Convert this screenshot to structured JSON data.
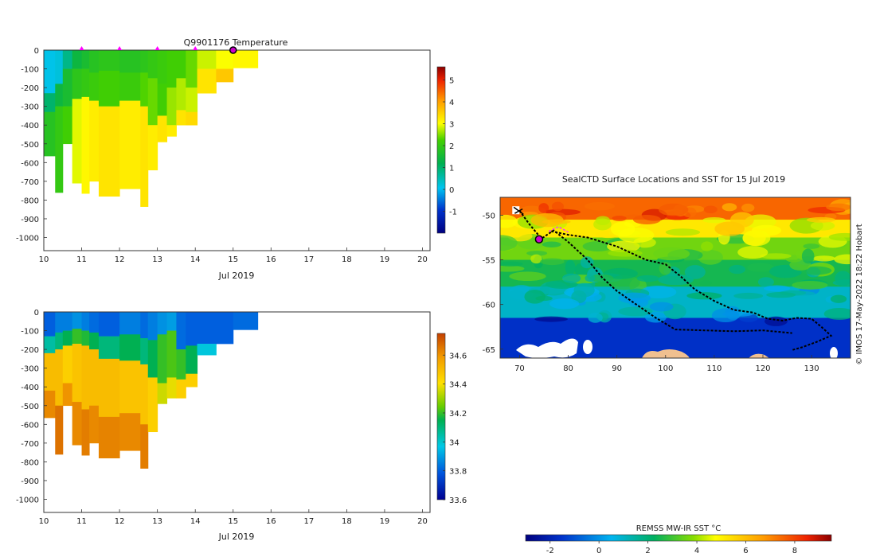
{
  "chart_data": [
    {
      "type": "heatmap",
      "title": "Q9901176  Temperature",
      "xlabel": "Jul 2019",
      "ylabel": "",
      "xlim": [
        10,
        20.2
      ],
      "ylim": [
        -1070,
        0
      ],
      "xticks": [
        "10",
        "11",
        "12",
        "13",
        "14",
        "15",
        "16",
        "17",
        "18",
        "19",
        "20"
      ],
      "yticks": [
        "0",
        "-100",
        "-200",
        "-300",
        "-400",
        "-500",
        "-600",
        "-700",
        "-800",
        "-900",
        "-1000"
      ],
      "colorbar": {
        "ticks": [
          "-1",
          "0",
          "1",
          "2",
          "3",
          "4",
          "5"
        ],
        "range": [
          -2,
          5.6
        ]
      },
      "surface_markers": [
        11,
        12,
        13,
        14
      ],
      "current_marker": 15,
      "profiles": [
        {
          "x0": 10.0,
          "x1": 10.3,
          "depth": 565,
          "bands": [
            [
              0,
              230,
              0.1
            ],
            [
              230,
              330,
              1.0
            ],
            [
              330,
              565,
              1.8
            ]
          ]
        },
        {
          "x0": 10.3,
          "x1": 10.5,
          "depth": 760,
          "bands": [
            [
              0,
              180,
              0.2
            ],
            [
              180,
              300,
              1.4
            ],
            [
              300,
              760,
              2.0
            ]
          ]
        },
        {
          "x0": 10.5,
          "x1": 10.75,
          "depth": 500,
          "bands": [
            [
              0,
              100,
              0.8
            ],
            [
              100,
              300,
              1.6
            ],
            [
              300,
              500,
              2.2
            ]
          ]
        },
        {
          "x0": 10.75,
          "x1": 11.0,
          "depth": 710,
          "bands": [
            [
              0,
              100,
              1.4
            ],
            [
              100,
              260,
              1.9
            ],
            [
              260,
              710,
              2.9
            ]
          ]
        },
        {
          "x0": 11.0,
          "x1": 11.2,
          "depth": 765,
          "bands": [
            [
              0,
              100,
              1.6
            ],
            [
              100,
              250,
              2.0
            ],
            [
              250,
              765,
              3.1
            ]
          ]
        },
        {
          "x0": 11.2,
          "x1": 11.45,
          "depth": 700,
          "bands": [
            [
              0,
              120,
              1.8
            ],
            [
              120,
              270,
              2.1
            ],
            [
              270,
              700,
              3.2
            ]
          ]
        },
        {
          "x0": 11.45,
          "x1": 12.0,
          "depth": 780,
          "bands": [
            [
              0,
              110,
              1.9
            ],
            [
              110,
              300,
              2.2
            ],
            [
              300,
              780,
              3.3
            ]
          ]
        },
        {
          "x0": 12.0,
          "x1": 12.55,
          "depth": 740,
          "bands": [
            [
              0,
              120,
              1.8
            ],
            [
              120,
              270,
              2.1
            ],
            [
              270,
              740,
              3.2
            ]
          ]
        },
        {
          "x0": 12.55,
          "x1": 12.75,
          "depth": 835,
          "bands": [
            [
              0,
              120,
              1.9
            ],
            [
              120,
              300,
              2.3
            ],
            [
              300,
              835,
              3.3
            ]
          ]
        },
        {
          "x0": 12.75,
          "x1": 13.0,
          "depth": 640,
          "bands": [
            [
              0,
              150,
              2.0
            ],
            [
              150,
              400,
              2.4
            ],
            [
              400,
              640,
              3.2
            ]
          ]
        },
        {
          "x0": 13.0,
          "x1": 13.25,
          "depth": 490,
          "bands": [
            [
              0,
              180,
              2.1
            ],
            [
              180,
              350,
              2.2
            ],
            [
              350,
              490,
              3.3
            ]
          ]
        },
        {
          "x0": 13.25,
          "x1": 13.5,
          "depth": 460,
          "bands": [
            [
              0,
              200,
              2.2
            ],
            [
              200,
              400,
              2.6
            ],
            [
              400,
              460,
              3.2
            ]
          ]
        },
        {
          "x0": 13.5,
          "x1": 13.75,
          "depth": 400,
          "bands": [
            [
              0,
              150,
              2.2
            ],
            [
              150,
              320,
              2.7
            ],
            [
              320,
              400,
              3.3
            ]
          ]
        },
        {
          "x0": 13.75,
          "x1": 14.05,
          "depth": 400,
          "bands": [
            [
              0,
              200,
              2.4
            ],
            [
              200,
              330,
              2.8
            ],
            [
              330,
              400,
              3.4
            ]
          ]
        },
        {
          "x0": 14.05,
          "x1": 14.55,
          "depth": 230,
          "bands": [
            [
              0,
              100,
              2.8
            ],
            [
              100,
              230,
              3.3
            ]
          ]
        },
        {
          "x0": 14.55,
          "x1": 15.0,
          "depth": 170,
          "bands": [
            [
              0,
              100,
              3.0
            ],
            [
              100,
              170,
              3.6
            ]
          ]
        },
        {
          "x0": 15.0,
          "x1": 15.65,
          "depth": 95,
          "bands": [
            [
              0,
              95,
              3.1
            ]
          ]
        }
      ]
    },
    {
      "type": "heatmap",
      "title": "",
      "xlabel": "Jul 2019",
      "ylabel": "",
      "xlim": [
        10,
        20.2
      ],
      "ylim": [
        -1070,
        0
      ],
      "xticks": [
        "10",
        "11",
        "12",
        "13",
        "14",
        "15",
        "16",
        "17",
        "18",
        "19",
        "20"
      ],
      "yticks": [
        "0",
        "-100",
        "-200",
        "-300",
        "-400",
        "-500",
        "-600",
        "-700",
        "-800",
        "-900",
        "-1000"
      ],
      "colorbar": {
        "ticks": [
          "33.6",
          "33.8",
          "34",
          "34.2",
          "34.4",
          "34.6"
        ],
        "range": [
          33.6,
          34.75
        ]
      },
      "profiles": [
        {
          "x0": 10.0,
          "x1": 10.3,
          "depth": 565,
          "bands": [
            [
              0,
              130,
              33.8
            ],
            [
              130,
              220,
              34.05
            ],
            [
              220,
              420,
              34.5
            ],
            [
              420,
              565,
              34.62
            ]
          ]
        },
        {
          "x0": 10.3,
          "x1": 10.5,
          "depth": 760,
          "bands": [
            [
              0,
              110,
              33.85
            ],
            [
              110,
              200,
              34.1
            ],
            [
              200,
              500,
              34.5
            ],
            [
              500,
              760,
              34.66
            ]
          ]
        },
        {
          "x0": 10.5,
          "x1": 10.75,
          "depth": 500,
          "bands": [
            [
              0,
              100,
              33.85
            ],
            [
              100,
              180,
              34.15
            ],
            [
              180,
              380,
              34.45
            ],
            [
              380,
              500,
              34.6
            ]
          ]
        },
        {
          "x0": 10.75,
          "x1": 11.0,
          "depth": 710,
          "bands": [
            [
              0,
              90,
              33.88
            ],
            [
              90,
              170,
              34.2
            ],
            [
              170,
              480,
              34.48
            ],
            [
              480,
              710,
              34.62
            ]
          ]
        },
        {
          "x0": 11.0,
          "x1": 11.2,
          "depth": 765,
          "bands": [
            [
              0,
              100,
              33.85
            ],
            [
              100,
              180,
              34.18
            ],
            [
              180,
              520,
              34.5
            ],
            [
              520,
              765,
              34.64
            ]
          ]
        },
        {
          "x0": 11.2,
          "x1": 11.45,
          "depth": 700,
          "bands": [
            [
              0,
              110,
              33.82
            ],
            [
              110,
              200,
              34.15
            ],
            [
              200,
              500,
              34.5
            ],
            [
              500,
              700,
              34.62
            ]
          ]
        },
        {
          "x0": 11.45,
          "x1": 12.0,
          "depth": 780,
          "bands": [
            [
              0,
              130,
              33.8
            ],
            [
              130,
              250,
              34.1
            ],
            [
              250,
              560,
              34.5
            ],
            [
              560,
              780,
              34.63
            ]
          ]
        },
        {
          "x0": 12.0,
          "x1": 12.55,
          "depth": 740,
          "bands": [
            [
              0,
              120,
              33.85
            ],
            [
              120,
              260,
              34.15
            ],
            [
              260,
              540,
              34.48
            ],
            [
              540,
              740,
              34.62
            ]
          ]
        },
        {
          "x0": 12.55,
          "x1": 12.75,
          "depth": 835,
          "bands": [
            [
              0,
              140,
              33.82
            ],
            [
              140,
              280,
              34.1
            ],
            [
              280,
              600,
              34.48
            ],
            [
              600,
              835,
              34.64
            ]
          ]
        },
        {
          "x0": 12.75,
          "x1": 13.0,
          "depth": 640,
          "bands": [
            [
              0,
              150,
              33.85
            ],
            [
              150,
              350,
              34.15
            ],
            [
              350,
              640,
              34.45
            ]
          ]
        },
        {
          "x0": 13.0,
          "x1": 13.25,
          "depth": 490,
          "bands": [
            [
              0,
              120,
              33.88
            ],
            [
              120,
              380,
              34.2
            ],
            [
              380,
              490,
              34.35
            ]
          ]
        },
        {
          "x0": 13.25,
          "x1": 13.5,
          "depth": 460,
          "bands": [
            [
              0,
              100,
              33.9
            ],
            [
              100,
              350,
              34.22
            ],
            [
              350,
              460,
              34.38
            ]
          ]
        },
        {
          "x0": 13.5,
          "x1": 13.75,
          "depth": 460,
          "bands": [
            [
              0,
              200,
              33.82
            ],
            [
              200,
              360,
              34.2
            ],
            [
              360,
              460,
              34.45
            ]
          ]
        },
        {
          "x0": 13.75,
          "x1": 14.05,
          "depth": 400,
          "bands": [
            [
              0,
              180,
              33.8
            ],
            [
              180,
              330,
              34.15
            ],
            [
              330,
              400,
              34.45
            ]
          ]
        },
        {
          "x0": 14.05,
          "x1": 14.55,
          "depth": 230,
          "bands": [
            [
              0,
              170,
              33.8
            ],
            [
              170,
              230,
              33.98
            ]
          ]
        },
        {
          "x0": 14.55,
          "x1": 15.0,
          "depth": 170,
          "bands": [
            [
              0,
              170,
              33.8
            ]
          ]
        },
        {
          "x0": 15.0,
          "x1": 15.65,
          "depth": 95,
          "bands": [
            [
              0,
              95,
              33.82
            ]
          ]
        }
      ]
    },
    {
      "type": "heatmap",
      "title": "SealCTD Surface Locations and SST for 15 Jul 2019",
      "xlabel": "",
      "ylabel": "",
      "xlim": [
        66,
        138
      ],
      "ylim": [
        -66,
        -48
      ],
      "xticks": [
        "70",
        "80",
        "90",
        "100",
        "110",
        "120",
        "130"
      ],
      "yticks": [
        "-50",
        "-55",
        "-60",
        "-65"
      ],
      "sst_bands": [
        {
          "lat_top": -48,
          "lat_bot": -50.5,
          "value": 7.5
        },
        {
          "lat_top": -50.5,
          "lat_bot": -52.5,
          "value": 5.2
        },
        {
          "lat_top": -52.5,
          "lat_bot": -55,
          "value": 3.6
        },
        {
          "lat_top": -55,
          "lat_bot": -58,
          "value": 2.5
        },
        {
          "lat_top": -58,
          "lat_bot": -61.5,
          "value": 1.0
        },
        {
          "lat_top": -61.5,
          "lat_bot": -66,
          "value": -1.6
        }
      ],
      "tracks": [
        [
          [
            76.5,
            -51.8
          ],
          [
            80,
            -52.2
          ],
          [
            84,
            -52.5
          ],
          [
            90,
            -53.5
          ],
          [
            96,
            -55
          ],
          [
            100,
            -55.5
          ],
          [
            103,
            -56.8
          ],
          [
            106,
            -58.3
          ],
          [
            110,
            -59.6
          ],
          [
            114,
            -60.6
          ],
          [
            118,
            -60.9
          ],
          [
            121,
            -61.6
          ],
          [
            124,
            -61.8
          ],
          [
            127,
            -61.5
          ],
          [
            130,
            -61.6
          ],
          [
            132,
            -62.5
          ],
          [
            134,
            -63.5
          ],
          [
            131,
            -64.2
          ],
          [
            128,
            -64.8
          ],
          [
            126,
            -65.1
          ]
        ],
        [
          [
            74,
            -52.8
          ],
          [
            77,
            -51.7
          ],
          [
            80,
            -53
          ],
          [
            84,
            -55
          ],
          [
            87,
            -57
          ],
          [
            90,
            -58.5
          ],
          [
            94,
            -60
          ],
          [
            98,
            -61.5
          ],
          [
            102,
            -62.8
          ],
          [
            108,
            -62.9
          ],
          [
            114,
            -63
          ],
          [
            120,
            -62.9
          ],
          [
            126,
            -63.2
          ]
        ],
        [
          [
            70,
            -49.5
          ],
          [
            72,
            -51
          ],
          [
            74,
            -52.3
          ]
        ]
      ],
      "current_position": [
        74,
        -52.7
      ],
      "watermark": "© IMOS 17-May-2022 18:22 Hobart",
      "colorbar": {
        "label": "REMSS MW-IR SST °C",
        "ticks": [
          "-2",
          "0",
          "2",
          "4",
          "6",
          "8"
        ],
        "range": [
          -3,
          9.5
        ]
      }
    }
  ]
}
